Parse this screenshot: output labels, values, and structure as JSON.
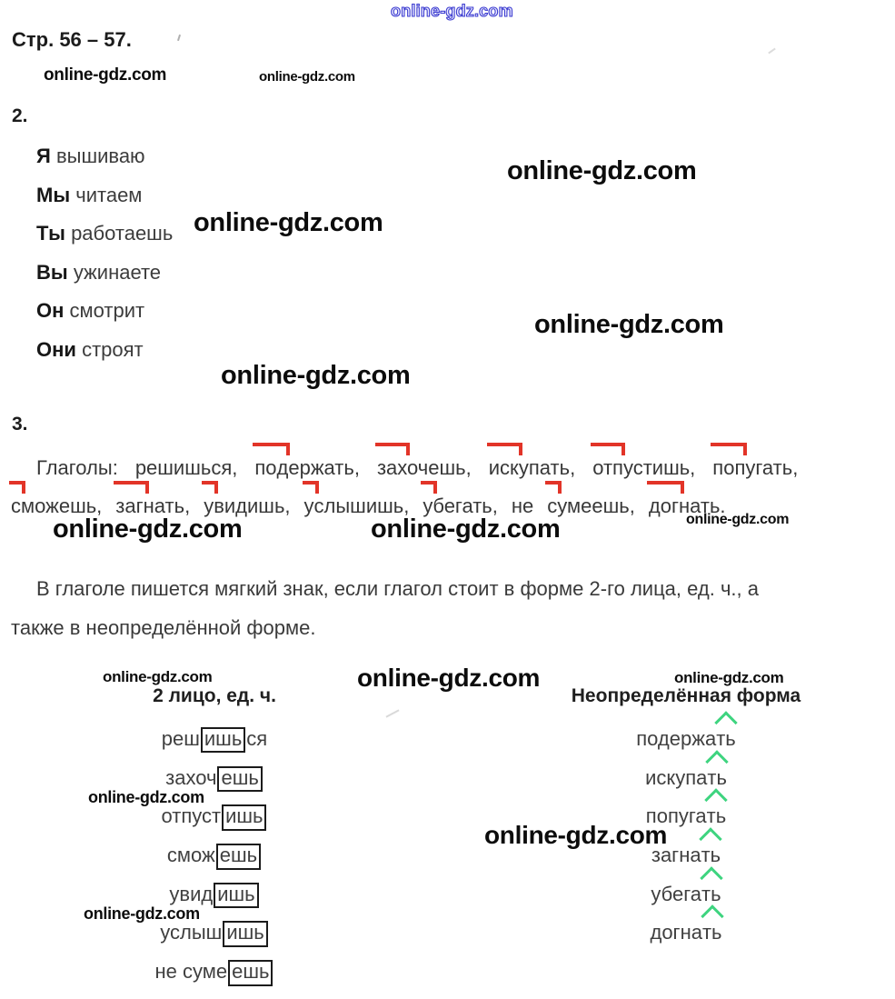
{
  "watermarks": {
    "text": "online-gdz.com"
  },
  "page": {
    "title": "Стр. 56 – 57."
  },
  "ex2": {
    "number": "2.",
    "items": [
      {
        "pronoun": "Я",
        "verb": "вышиваю"
      },
      {
        "pronoun": "Мы",
        "verb": "читаем"
      },
      {
        "pronoun": "Ты",
        "verb": "работаешь"
      },
      {
        "pronoun": "Вы",
        "verb": "ужинаете"
      },
      {
        "pronoun": "Он",
        "verb": "смотрит"
      },
      {
        "pronoun": "Они",
        "verb": "строят"
      }
    ]
  },
  "ex3": {
    "number": "3.",
    "line1": [
      {
        "pfx": "",
        "rest": "Глаголы:"
      },
      {
        "pfx": "",
        "rest": "решишься,"
      },
      {
        "pfx": "по",
        "rest": "держать,"
      },
      {
        "pfx": "за",
        "rest": "хочешь,"
      },
      {
        "pfx": "ис",
        "rest": "купать,"
      },
      {
        "pfx": "от",
        "rest": "пустишь,"
      },
      {
        "pfx": "по",
        "rest": "пугать,"
      }
    ],
    "line2": [
      {
        "pfx": "с",
        "rest": "можешь,"
      },
      {
        "pfx": "за",
        "rest": "гнать,"
      },
      {
        "pfx": "у",
        "rest": "видишь,"
      },
      {
        "pfx": "у",
        "rest": "слышишь,"
      },
      {
        "pfx": "у",
        "rest": "бегать,"
      },
      {
        "pfx": "",
        "rest": "не"
      },
      {
        "pfx": "с",
        "rest": "умеешь,"
      },
      {
        "pfx": "до",
        "rest": "гнать."
      }
    ],
    "note_line1": "В глаголе пишется мягкий знак, если глагол стоит в форме 2-го лица, ед. ч., а",
    "note_line2": "также в неопределённой форме."
  },
  "table": {
    "left_header": "2 лицо, ед. ч.",
    "right_header": "Неопределённая форма",
    "left": [
      {
        "pre": "реш",
        "boxed": "ишь",
        "post": "ся"
      },
      {
        "pre": "захоч",
        "boxed": "ешь",
        "post": ""
      },
      {
        "pre": "отпуст",
        "boxed": "ишь",
        "post": ""
      },
      {
        "pre": "смож",
        "boxed": "ешь",
        "post": ""
      },
      {
        "pre": "увид",
        "boxed": "ишь",
        "post": ""
      },
      {
        "pre": "услыш",
        "boxed": "ишь",
        "post": ""
      },
      {
        "pre": "не суме",
        "boxed": "ешь",
        "post": ""
      }
    ],
    "right": [
      {
        "pre": "подержа",
        "marked": "ть"
      },
      {
        "pre": "искупа",
        "marked": "ть"
      },
      {
        "pre": "попуга",
        "marked": "ть"
      },
      {
        "pre": "загна",
        "marked": "ть"
      },
      {
        "pre": "убега",
        "marked": "ть"
      },
      {
        "pre": "догна",
        "marked": "ть"
      }
    ]
  },
  "colors": {
    "accent_red": "#e23428",
    "accent_green": "#3ed47f",
    "watermark_blue": "#3b3bd0"
  }
}
